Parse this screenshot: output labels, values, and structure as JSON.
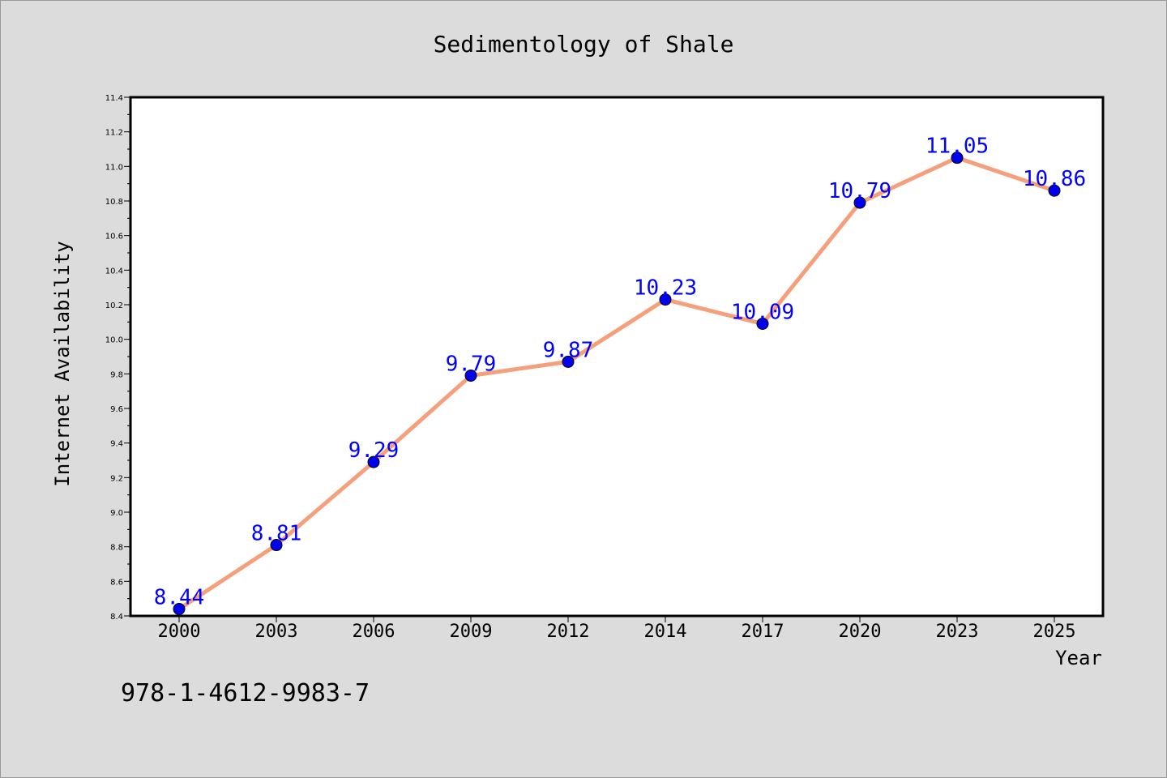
{
  "chart_data": {
    "type": "line",
    "title": "Sedimentology of Shale",
    "xlabel": "Year",
    "ylabel": "Internet Availability",
    "categories": [
      "2000",
      "2003",
      "2006",
      "2009",
      "2012",
      "2014",
      "2017",
      "2020",
      "2023",
      "2025"
    ],
    "series": [
      {
        "values": [
          8.44,
          8.81,
          9.29,
          9.79,
          9.87,
          10.23,
          10.09,
          10.79,
          11.05,
          10.86
        ],
        "labels": [
          "8.44",
          "8.81",
          "9.29",
          "9.79",
          "9.87",
          "10.23",
          "10.09",
          "10.79",
          "11.05",
          "10.86"
        ],
        "line_color": "#f4a07c",
        "marker_color": "#0000ee"
      }
    ],
    "ylim": [
      8.4,
      11.4
    ],
    "yticks": [
      "8.4",
      "8.6",
      "8.8",
      "9.0",
      "9.2",
      "9.4",
      "9.6",
      "9.8",
      "10.0",
      "10.2",
      "10.4",
      "10.6",
      "10.8",
      "11.0",
      "11.2",
      "11.4"
    ],
    "grid": false,
    "legend": "none",
    "data_label_color": "#0000ff"
  },
  "footnote": "978-1-4612-9983-7"
}
